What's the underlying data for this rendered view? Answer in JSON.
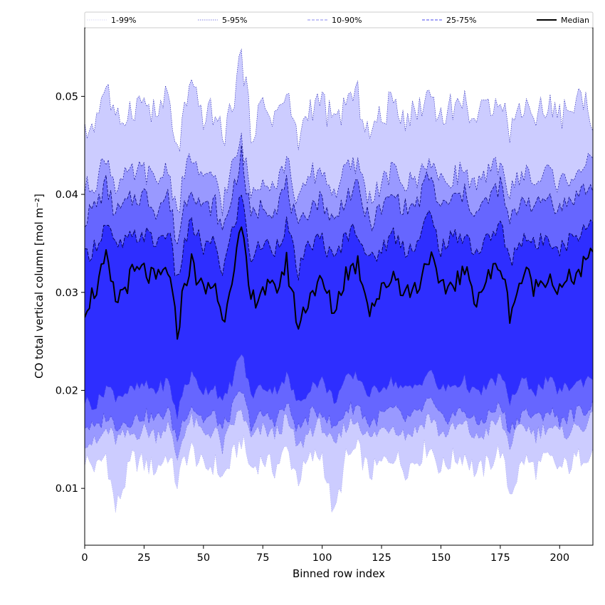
{
  "chart_data": {
    "type": "area",
    "xlabel": "Binned row index",
    "ylabel": "CO total vertical column [mol m⁻²]",
    "xlim": [
      0,
      214
    ],
    "ylim": [
      0.0042,
      0.057
    ],
    "xticks": [
      0,
      25,
      50,
      75,
      100,
      125,
      150,
      175,
      200
    ],
    "yticks": [
      0.01,
      0.02,
      0.03,
      0.04,
      0.05
    ],
    "ytick_labels": [
      "0.01",
      "0.02",
      "0.03",
      "0.04",
      "0.05"
    ],
    "grid": false,
    "legend_position": "top",
    "legend": [
      {
        "label": "1-99%",
        "style": "dotted",
        "color": "#d8d8f6"
      },
      {
        "label": "5-95%",
        "style": "dotted",
        "color": "#8080e0"
      },
      {
        "label": "10-90%",
        "style": "dashed",
        "color": "#8a8aee"
      },
      {
        "label": "25-75%",
        "style": "dashed",
        "color": "#4a4aee"
      },
      {
        "label": "Median",
        "style": "solid",
        "color": "#000000"
      }
    ],
    "colors": {
      "band_1_99": "#ccccff",
      "band_5_95": "#9999ff",
      "band_10_90": "#6666ff",
      "band_25_75": "#2e2eff",
      "median": "#000000"
    },
    "x_step": 1,
    "keypoints": {
      "x": [
        0,
        5,
        9,
        13,
        20,
        25,
        30,
        35,
        39,
        42,
        45,
        50,
        55,
        58,
        62,
        66,
        70,
        75,
        80,
        85,
        90,
        95,
        100,
        105,
        110,
        115,
        120,
        125,
        130,
        135,
        140,
        145,
        150,
        155,
        160,
        165,
        170,
        175,
        179,
        185,
        190,
        195,
        200,
        205,
        210,
        214
      ],
      "median": [
        0.0285,
        0.0305,
        0.0332,
        0.029,
        0.0318,
        0.0322,
        0.031,
        0.0325,
        0.0258,
        0.031,
        0.033,
        0.03,
        0.031,
        0.0268,
        0.032,
        0.0362,
        0.029,
        0.0305,
        0.03,
        0.033,
        0.0265,
        0.03,
        0.031,
        0.028,
        0.032,
        0.033,
        0.0285,
        0.03,
        0.032,
        0.03,
        0.0305,
        0.034,
        0.03,
        0.031,
        0.032,
        0.0295,
        0.0315,
        0.033,
        0.028,
        0.032,
        0.0305,
        0.032,
        0.03,
        0.0315,
        0.0325,
        0.0338
      ],
      "p75": [
        0.0335,
        0.035,
        0.037,
        0.0345,
        0.0355,
        0.036,
        0.035,
        0.0365,
        0.031,
        0.035,
        0.037,
        0.0345,
        0.035,
        0.032,
        0.036,
        0.04,
        0.0335,
        0.035,
        0.0345,
        0.037,
        0.032,
        0.035,
        0.0355,
        0.033,
        0.036,
        0.0365,
        0.033,
        0.0345,
        0.036,
        0.0345,
        0.035,
        0.038,
        0.0345,
        0.0355,
        0.036,
        0.034,
        0.0355,
        0.037,
        0.033,
        0.036,
        0.0345,
        0.036,
        0.0345,
        0.0355,
        0.0365,
        0.0375
      ],
      "p90": [
        0.0375,
        0.039,
        0.041,
        0.038,
        0.0395,
        0.04,
        0.0385,
        0.04,
        0.035,
        0.039,
        0.041,
        0.0385,
        0.039,
        0.036,
        0.04,
        0.044,
        0.0375,
        0.039,
        0.0385,
        0.041,
        0.036,
        0.039,
        0.0395,
        0.037,
        0.04,
        0.0405,
        0.037,
        0.0385,
        0.04,
        0.0385,
        0.039,
        0.042,
        0.0385,
        0.0395,
        0.04,
        0.038,
        0.0395,
        0.041,
        0.037,
        0.04,
        0.0385,
        0.04,
        0.0385,
        0.0395,
        0.0405,
        0.0405
      ],
      "p95": [
        0.0405,
        0.0415,
        0.044,
        0.041,
        0.042,
        0.0425,
        0.041,
        0.043,
        0.038,
        0.042,
        0.044,
        0.041,
        0.042,
        0.039,
        0.0425,
        0.0455,
        0.04,
        0.042,
        0.041,
        0.0435,
        0.039,
        0.042,
        0.0425,
        0.04,
        0.0425,
        0.043,
        0.0395,
        0.041,
        0.0425,
        0.041,
        0.0415,
        0.044,
        0.041,
        0.042,
        0.0425,
        0.0405,
        0.042,
        0.0435,
        0.04,
        0.0425,
        0.041,
        0.0425,
        0.041,
        0.042,
        0.043,
        0.043
      ],
      "p99": [
        0.046,
        0.048,
        0.0515,
        0.047,
        0.049,
        0.0495,
        0.048,
        0.05,
        0.044,
        0.0485,
        0.0505,
        0.048,
        0.0485,
        0.0455,
        0.049,
        0.0545,
        0.0465,
        0.049,
        0.048,
        0.05,
        0.0455,
        0.049,
        0.0495,
        0.047,
        0.0495,
        0.05,
        0.046,
        0.048,
        0.0495,
        0.048,
        0.0485,
        0.0505,
        0.048,
        0.049,
        0.0495,
        0.0475,
        0.049,
        0.0505,
        0.0465,
        0.0495,
        0.048,
        0.0495,
        0.048,
        0.049,
        0.05,
        0.048
      ],
      "p25": [
        0.019,
        0.0185,
        0.0205,
        0.0195,
        0.02,
        0.0205,
        0.02,
        0.021,
        0.0175,
        0.0205,
        0.0215,
        0.02,
        0.0205,
        0.0185,
        0.021,
        0.024,
        0.0195,
        0.0205,
        0.02,
        0.0215,
        0.0185,
        0.0205,
        0.021,
        0.019,
        0.021,
        0.0215,
        0.0195,
        0.0205,
        0.021,
        0.02,
        0.0205,
        0.022,
        0.02,
        0.0205,
        0.021,
        0.0195,
        0.0205,
        0.0215,
        0.019,
        0.021,
        0.02,
        0.021,
        0.02,
        0.0205,
        0.021,
        0.0215
      ],
      "p10": [
        0.0165,
        0.016,
        0.0175,
        0.0165,
        0.017,
        0.0175,
        0.017,
        0.018,
        0.015,
        0.0175,
        0.0185,
        0.017,
        0.0175,
        0.016,
        0.018,
        0.02,
        0.0165,
        0.0175,
        0.017,
        0.0185,
        0.016,
        0.0175,
        0.018,
        0.016,
        0.018,
        0.0185,
        0.0165,
        0.0175,
        0.018,
        0.017,
        0.0175,
        0.019,
        0.017,
        0.0175,
        0.018,
        0.0165,
        0.0175,
        0.0185,
        0.016,
        0.018,
        0.017,
        0.018,
        0.017,
        0.0175,
        0.018,
        0.0185
      ],
      "p5": [
        0.015,
        0.0145,
        0.016,
        0.015,
        0.0155,
        0.016,
        0.0155,
        0.0165,
        0.013,
        0.016,
        0.017,
        0.0155,
        0.016,
        0.014,
        0.0165,
        0.018,
        0.015,
        0.016,
        0.0155,
        0.017,
        0.014,
        0.016,
        0.0165,
        0.014,
        0.0165,
        0.017,
        0.015,
        0.016,
        0.0165,
        0.0155,
        0.016,
        0.0175,
        0.0155,
        0.016,
        0.0165,
        0.015,
        0.016,
        0.017,
        0.0145,
        0.0165,
        0.0155,
        0.0165,
        0.0155,
        0.016,
        0.0165,
        0.017
      ],
      "p1": [
        0.013,
        0.012,
        0.0135,
        0.0078,
        0.013,
        0.0125,
        0.012,
        0.0135,
        0.0105,
        0.013,
        0.014,
        0.012,
        0.0125,
        0.011,
        0.013,
        0.015,
        0.012,
        0.013,
        0.012,
        0.014,
        0.011,
        0.013,
        0.0135,
        0.007,
        0.013,
        0.014,
        0.0115,
        0.0125,
        0.0135,
        0.012,
        0.013,
        0.0145,
        0.012,
        0.013,
        0.0135,
        0.0115,
        0.0125,
        0.014,
        0.0095,
        0.013,
        0.012,
        0.013,
        0.012,
        0.0125,
        0.0135,
        0.014
      ]
    }
  }
}
